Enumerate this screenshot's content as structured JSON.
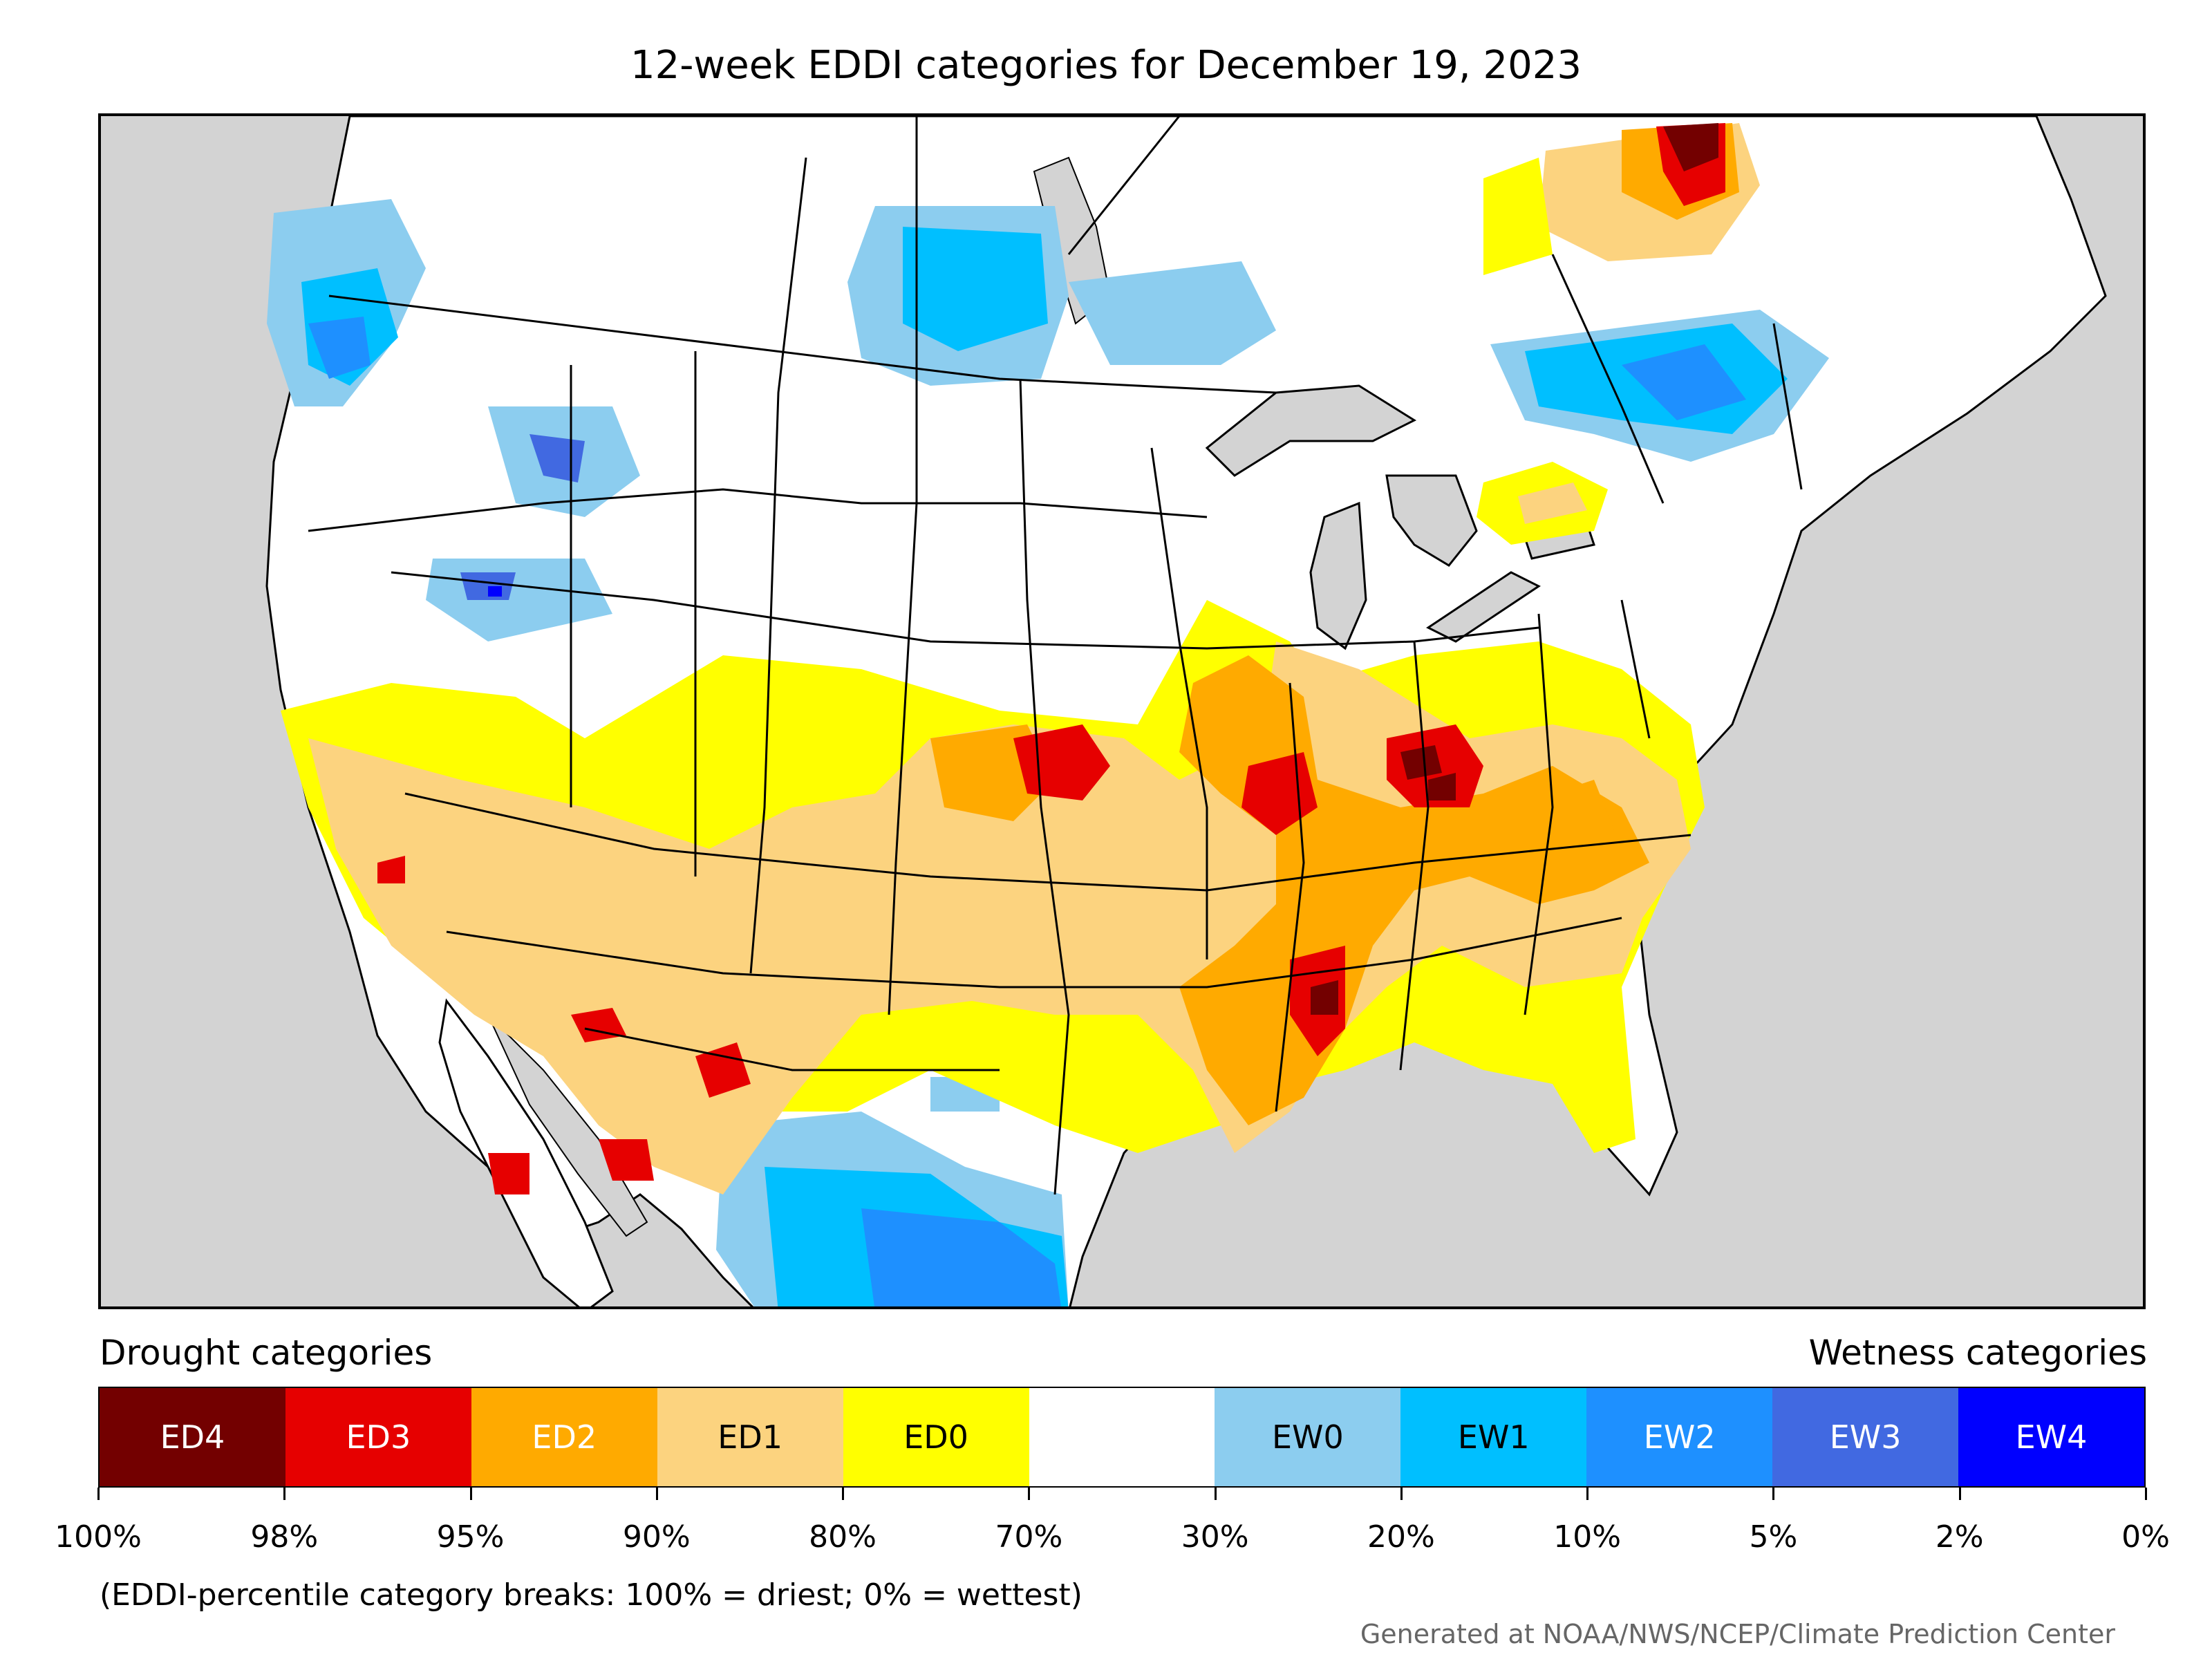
{
  "title": "12-week EDDI categories for December 19, 2023",
  "map": {
    "regions": [
      {
        "class": "EW1",
        "area": "Northwest (WA/OR/ID)"
      },
      {
        "class": "EW2",
        "area": "Idaho / NE Oregon"
      },
      {
        "class": "EW0",
        "area": "North Dakota / Manitoba"
      },
      {
        "class": "EW1",
        "area": "Northern New York / New England / Quebec"
      },
      {
        "class": "EW2",
        "area": "South Texas"
      },
      {
        "class": "ED4",
        "area": "Eastern Quebec"
      },
      {
        "class": "ED3",
        "area": "Kansas"
      },
      {
        "class": "ED3",
        "area": "Kentucky / Indiana"
      },
      {
        "class": "ED3",
        "area": "Mississippi"
      },
      {
        "class": "ED2",
        "area": "Missouri / Iowa / Illinois"
      },
      {
        "class": "ED2",
        "area": "Louisiana / Arkansas"
      },
      {
        "class": "ED1",
        "area": "Arizona / New Mexico / Sonora"
      },
      {
        "class": "ED1",
        "area": "Southern California"
      },
      {
        "class": "ED0",
        "area": "Central Plains / Southeast"
      }
    ]
  },
  "legend": {
    "drought_heading": "Drought categories",
    "wetness_heading": "Wetness categories",
    "categories": [
      {
        "label": "ED4",
        "color": "#730000",
        "text_color": "#ffffff"
      },
      {
        "label": "ED3",
        "color": "#e60000",
        "text_color": "#ffffff"
      },
      {
        "label": "ED2",
        "color": "#ffaa00",
        "text_color": "#ffffff"
      },
      {
        "label": "ED1",
        "color": "#fcd37f",
        "text_color": "#000000"
      },
      {
        "label": "ED0",
        "color": "#ffff00",
        "text_color": "#000000"
      },
      {
        "label": "",
        "color": "#ffffff",
        "text_color": "#000000"
      },
      {
        "label": "EW0",
        "color": "#8ccdef",
        "text_color": "#000000"
      },
      {
        "label": "EW1",
        "color": "#00bfff",
        "text_color": "#000000"
      },
      {
        "label": "EW2",
        "color": "#1e90ff",
        "text_color": "#ffffff"
      },
      {
        "label": "EW3",
        "color": "#4169e1",
        "text_color": "#ffffff"
      },
      {
        "label": "EW4",
        "color": "#0000ff",
        "text_color": "#ffffff"
      }
    ],
    "ticks": [
      "100%",
      "98%",
      "95%",
      "90%",
      "80%",
      "70%",
      "30%",
      "20%",
      "10%",
      "5%",
      "2%",
      "0%"
    ]
  },
  "footnote": "(EDDI-percentile category breaks: 100% = driest; 0% = wettest)",
  "credit": "Generated at NOAA/NWS/NCEP/Climate Prediction Center"
}
